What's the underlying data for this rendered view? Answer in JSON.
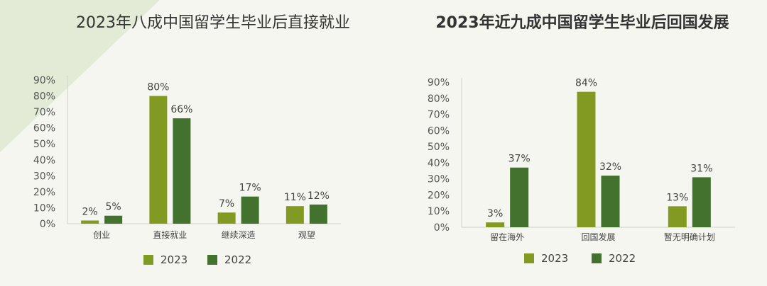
{
  "colors": {
    "series_2023": "#829a22",
    "series_2022": "#42722e",
    "axis": "#cfd3c8",
    "tick_text": "#555555",
    "label_text": "#444444",
    "decor": "#e3ebd6"
  },
  "chart_data": [
    {
      "type": "bar",
      "title": "2023年八成中国留学生毕业后直接就业",
      "categories": [
        "创业",
        "直接就业",
        "继续深造",
        "观望"
      ],
      "series": [
        {
          "name": "2023",
          "values": [
            2,
            80,
            7,
            11
          ]
        },
        {
          "name": "2022",
          "values": [
            5,
            66,
            17,
            12
          ]
        }
      ],
      "data_labels": [
        [
          "2%",
          "80%",
          "7%",
          "11%"
        ],
        [
          "5%",
          "66%",
          "17%",
          "12%"
        ]
      ],
      "yticks": [
        "0%",
        "10%",
        "20%",
        "30%",
        "40%",
        "50%",
        "60%",
        "70%",
        "80%",
        "90%"
      ],
      "ylim": [
        0,
        90
      ],
      "legend": [
        "2023",
        "2022"
      ],
      "legend_position": "bottom",
      "grid": false
    },
    {
      "type": "bar",
      "title": "2023年近九成中国留学生毕业后回国发展",
      "categories": [
        "留在海外",
        "回国发展",
        "暂无明确计划"
      ],
      "series": [
        {
          "name": "2023",
          "values": [
            3,
            84,
            13
          ]
        },
        {
          "name": "2022",
          "values": [
            37,
            32,
            31
          ]
        }
      ],
      "data_labels": [
        [
          "3%",
          "84%",
          "13%"
        ],
        [
          "37%",
          "32%",
          "31%"
        ]
      ],
      "yticks": [
        "0%",
        "10%",
        "20%",
        "30%",
        "40%",
        "50%",
        "60%",
        "70%",
        "80%",
        "90%"
      ],
      "ylim": [
        0,
        90
      ],
      "legend": [
        "2023",
        "2022"
      ],
      "legend_position": "bottom",
      "grid": false
    }
  ]
}
